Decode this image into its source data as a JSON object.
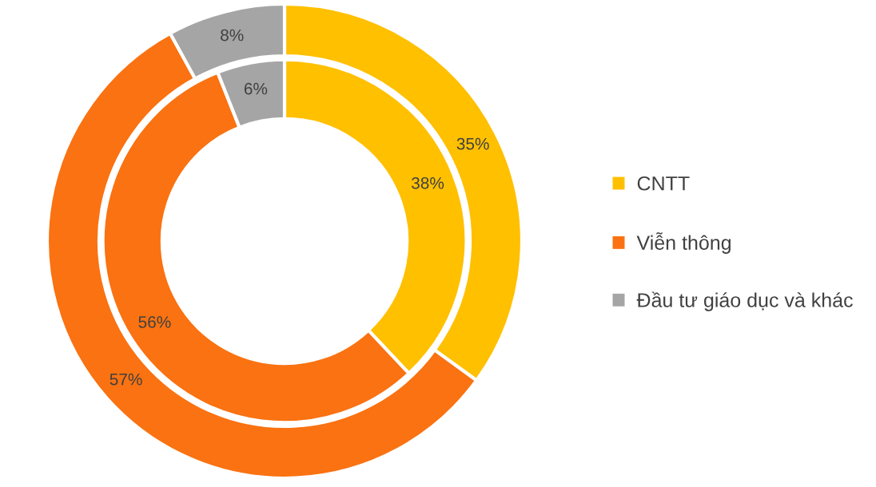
{
  "chart_data": {
    "type": "donut",
    "categories": [
      "CNTT",
      "Viễn thông",
      "Đầu tư giáo dục và khác"
    ],
    "colors": [
      "#ffc000",
      "#fa7211",
      "#a5a5a5"
    ],
    "series": [
      {
        "values": [
          35,
          57,
          8
        ],
        "value_labels": [
          "35%",
          "57%",
          "8%"
        ]
      },
      {
        "values": [
          38,
          56,
          6
        ],
        "value_labels": [
          "38%",
          "56%",
          "6%"
        ]
      }
    ],
    "legend": "right"
  }
}
